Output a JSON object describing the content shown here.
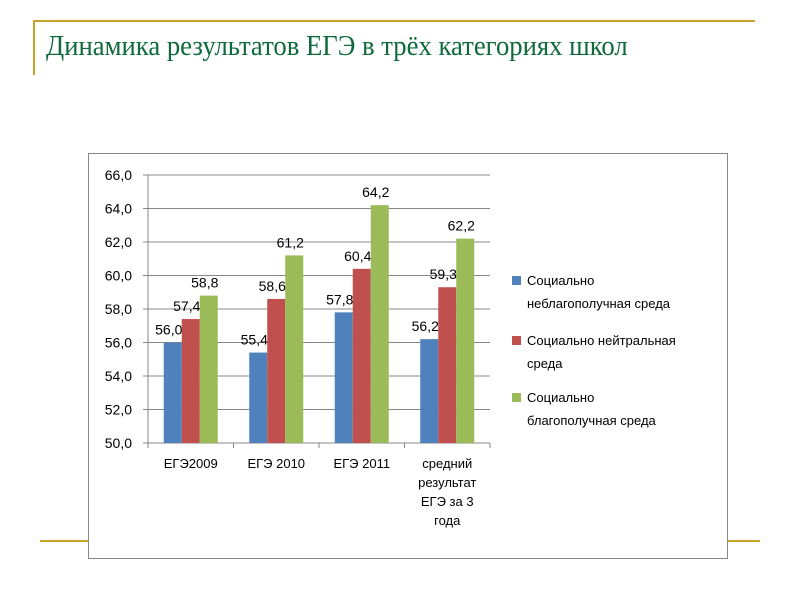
{
  "title": "Динамика результатов ЕГЭ в трёх категориях школ",
  "chart_data": {
    "type": "bar",
    "title": "",
    "xlabel": "",
    "ylabel": "",
    "ylim": [
      50,
      66
    ],
    "yticks": [
      "50,0",
      "52,0",
      "54,0",
      "56,0",
      "58,0",
      "60,0",
      "62,0",
      "64,0",
      "66,0"
    ],
    "categories": [
      [
        "ЕГЭ2009"
      ],
      [
        "ЕГЭ 2010"
      ],
      [
        "ЕГЭ 2011"
      ],
      [
        "средний",
        "результат",
        "ЕГЭ за 3",
        "года"
      ]
    ],
    "series": [
      {
        "name": "Социально неблагополучная среда",
        "legend_lines": [
          "Социально",
          "неблагополучная среда"
        ],
        "color": "#4f81bd",
        "values": [
          56.0,
          55.4,
          57.8,
          56.2
        ],
        "labels": [
          "56,0",
          "55,4",
          "57,8",
          "56,2"
        ]
      },
      {
        "name": "Социально нейтральная среда",
        "legend_lines": [
          "Социально нейтральная",
          "среда"
        ],
        "color": "#c0504d",
        "values": [
          57.4,
          58.6,
          60.4,
          59.3
        ],
        "labels": [
          "57,4",
          "58,6",
          "60,4",
          "59,3"
        ]
      },
      {
        "name": "Социально благополучная среда",
        "legend_lines": [
          "Социально",
          "благополучная среда"
        ],
        "color": "#9bbb59",
        "values": [
          58.8,
          61.2,
          64.2,
          62.2
        ],
        "labels": [
          "58,8",
          "61,2",
          "64,2",
          "62,2"
        ]
      }
    ],
    "grid": true,
    "legend": "right"
  }
}
